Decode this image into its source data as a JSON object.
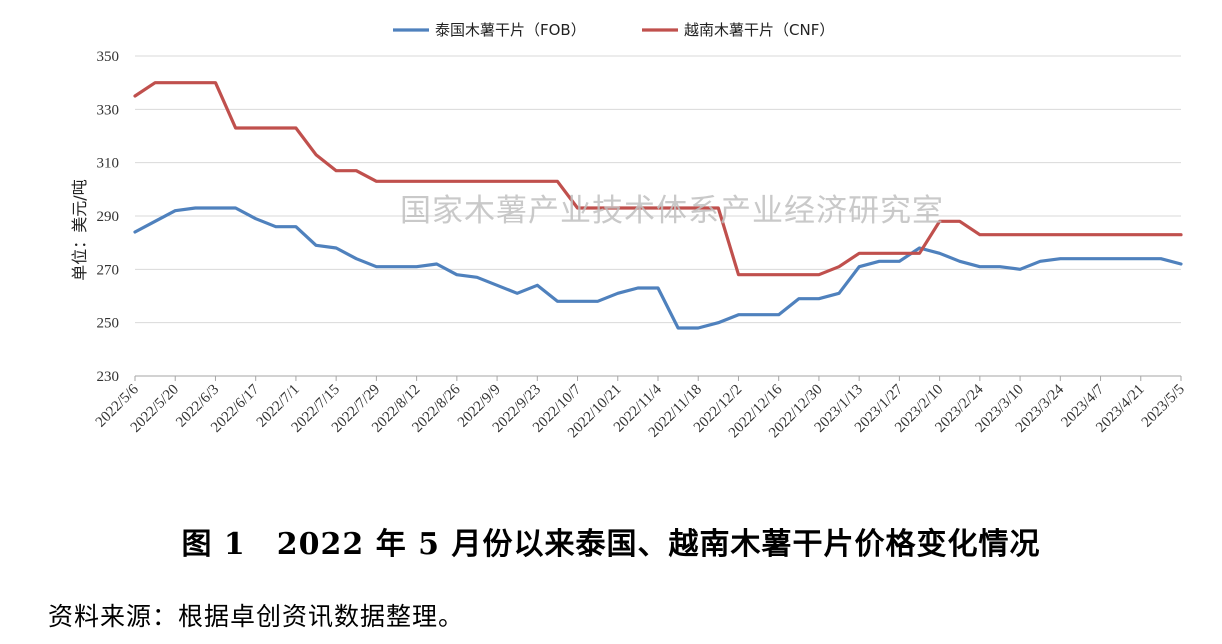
{
  "chart_data": {
    "type": "line",
    "title": "",
    "xlabel": "",
    "ylabel": "单位：美元/吨",
    "ylim": [
      230,
      350
    ],
    "yticks": [
      230,
      250,
      270,
      290,
      310,
      330,
      350
    ],
    "grid": true,
    "legend_position": "top",
    "x": [
      "2022/5/6",
      "2022/5/13",
      "2022/5/20",
      "2022/5/27",
      "2022/6/3",
      "2022/6/10",
      "2022/6/17",
      "2022/6/24",
      "2022/7/1",
      "2022/7/8",
      "2022/7/15",
      "2022/7/22",
      "2022/7/29",
      "2022/8/5",
      "2022/8/12",
      "2022/8/19",
      "2022/8/26",
      "2022/9/2",
      "2022/9/9",
      "2022/9/16",
      "2022/9/23",
      "2022/9/30",
      "2022/10/7",
      "2022/10/14",
      "2022/10/21",
      "2022/10/28",
      "2022/11/4",
      "2022/11/11",
      "2022/11/18",
      "2022/11/25",
      "2022/12/2",
      "2022/12/9",
      "2022/12/16",
      "2022/12/23",
      "2022/12/30",
      "2023/1/6",
      "2023/1/13",
      "2023/1/20",
      "2023/1/27",
      "2023/2/3",
      "2023/2/10",
      "2023/2/17",
      "2023/2/24",
      "2023/3/3",
      "2023/3/10",
      "2023/3/17",
      "2023/3/24",
      "2023/3/31",
      "2023/4/7",
      "2023/4/14",
      "2023/4/21",
      "2023/4/28",
      "2023/5/5"
    ],
    "xtick_labels": [
      "2022/5/6",
      "2022/5/20",
      "2022/6/3",
      "2022/6/17",
      "2022/7/1",
      "2022/7/15",
      "2022/7/29",
      "2022/8/12",
      "2022/8/26",
      "2022/9/9",
      "2022/9/23",
      "2022/10/7",
      "2022/10/21",
      "2022/11/4",
      "2022/11/18",
      "2022/12/2",
      "2022/12/16",
      "2022/12/30",
      "2023/1/13",
      "2023/1/27",
      "2023/2/10",
      "2023/2/24",
      "2023/3/10",
      "2023/3/24",
      "2023/4/7",
      "2023/4/21",
      "2023/5/5"
    ],
    "series": [
      {
        "name": "泰国木薯干片（FOB）",
        "color": "#4f81bd",
        "values": [
          284,
          288,
          292,
          293,
          293,
          293,
          289,
          286,
          286,
          279,
          278,
          274,
          271,
          271,
          271,
          272,
          268,
          267,
          264,
          261,
          264,
          258,
          258,
          258,
          261,
          263,
          263,
          248,
          248,
          250,
          253,
          253,
          253,
          259,
          259,
          261,
          271,
          273,
          273,
          278,
          276,
          273,
          271,
          271,
          270,
          273,
          274,
          274,
          274,
          274,
          274,
          274,
          272
        ]
      },
      {
        "name": "越南木薯干片（CNF）",
        "color": "#c0504d",
        "values": [
          335,
          340,
          340,
          340,
          340,
          323,
          323,
          323,
          323,
          313,
          307,
          307,
          303,
          303,
          303,
          303,
          303,
          303,
          303,
          303,
          303,
          303,
          293,
          293,
          293,
          293,
          293,
          293,
          293,
          293,
          268,
          268,
          268,
          268,
          268,
          271,
          276,
          276,
          276,
          276,
          288,
          288,
          283,
          283,
          283,
          283,
          283,
          283,
          283,
          283,
          283,
          283,
          283
        ]
      }
    ]
  },
  "watermark": "国家木薯产业技术体系产业经济研究室",
  "caption": "图 1　2022 年 5 月份以来泰国、越南木薯干片价格变化情况",
  "source": "资料来源：根据卓创资讯数据整理。"
}
